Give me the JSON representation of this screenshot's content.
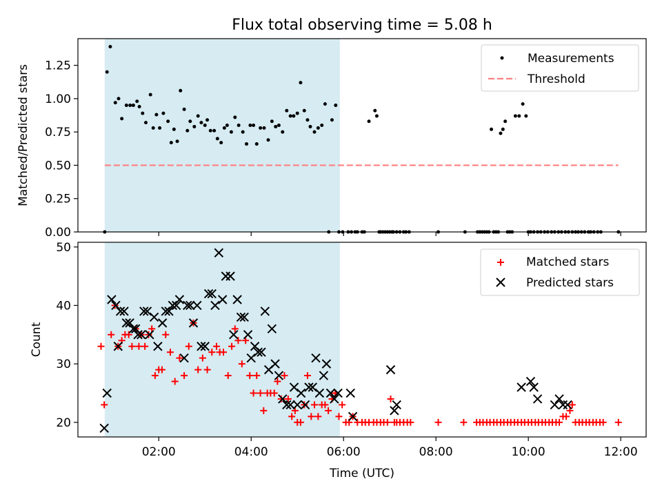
{
  "colors": {
    "measurement": "#000000",
    "threshold": "#ff7f7f",
    "matched": "#ff0000",
    "predicted": "#000000",
    "shade": "#add8e6"
  },
  "chart_data": {
    "title": "Flux total observing time = 5.08 h",
    "x_axis": {
      "label": "Time (UTC)",
      "xlim_hours": [
        0.25,
        12.55
      ],
      "ticks": [
        2,
        4,
        6,
        8,
        10,
        12
      ],
      "tick_labels": [
        "02:00",
        "04:00",
        "06:00",
        "08:00",
        "10:00",
        "12:00"
      ]
    },
    "shaded_interval_hours": [
      0.83,
      5.92
    ],
    "panels": [
      {
        "type": "scatter",
        "ylabel": "Matched/Predicted stars",
        "ylim": [
          0,
          1.45
        ],
        "yticks": [
          0.0,
          0.25,
          0.5,
          0.75,
          1.0,
          1.25
        ],
        "ytick_labels": [
          "0.00",
          "0.25",
          "0.50",
          "0.75",
          "1.00",
          "1.25"
        ],
        "legend": {
          "placement": "top-right",
          "entries": [
            "Measurements",
            "Threshold"
          ]
        },
        "threshold": {
          "name": "Threshold",
          "y": 0.5,
          "x_range": [
            0.83,
            11.95
          ]
        },
        "series": [
          {
            "name": "Measurements",
            "marker": "dot",
            "x": [
              0.83,
              0.88,
              0.95,
              1.06,
              1.13,
              1.2,
              1.3,
              1.38,
              1.45,
              1.53,
              1.58,
              1.65,
              1.72,
              1.82,
              1.88,
              1.95,
              2.02,
              2.1,
              2.2,
              2.27,
              2.33,
              2.4,
              2.47,
              2.55,
              2.62,
              2.68,
              2.77,
              2.85,
              2.92,
              3.0,
              3.05,
              3.12,
              3.2,
              3.27,
              3.35,
              3.42,
              3.48,
              3.57,
              3.65,
              3.73,
              3.82,
              3.9,
              3.98,
              4.05,
              4.12,
              4.2,
              4.28,
              4.37,
              4.45,
              4.53,
              4.6,
              4.68,
              4.77,
              4.85,
              4.92,
              5.0,
              5.07,
              5.15,
              5.22,
              5.28,
              5.37,
              5.45,
              5.53,
              5.6,
              5.68,
              5.75,
              5.83,
              5.9,
              5.98,
              6.1,
              6.17,
              6.25,
              6.3,
              6.4,
              6.45,
              6.55,
              6.68,
              6.72,
              6.77,
              6.8,
              6.85,
              6.9,
              6.95,
              7.0,
              7.05,
              7.08,
              7.15,
              7.22,
              7.3,
              7.35,
              7.42,
              8.05,
              8.63,
              8.9,
              8.95,
              9.0,
              9.05,
              9.1,
              9.15,
              9.2,
              9.25,
              9.3,
              9.35,
              9.4,
              9.45,
              9.5,
              9.55,
              9.6,
              9.65,
              9.72,
              9.8,
              9.88,
              9.95,
              10.0,
              10.05,
              10.12,
              10.2,
              10.27,
              10.35,
              10.42,
              10.5,
              10.57,
              10.65,
              10.72,
              10.8,
              10.87,
              10.95,
              11.02,
              11.08,
              11.15,
              11.22,
              11.3,
              11.35,
              11.42,
              11.5,
              11.57,
              11.95
            ],
            "y": [
              0.0,
              1.2,
              1.39,
              0.97,
              1.0,
              0.85,
              0.95,
              0.95,
              0.95,
              0.98,
              0.94,
              0.89,
              0.82,
              1.03,
              0.78,
              0.88,
              0.78,
              0.89,
              0.83,
              0.67,
              0.77,
              0.68,
              1.06,
              0.92,
              0.76,
              0.83,
              0.79,
              0.87,
              0.82,
              0.8,
              0.84,
              0.76,
              0.76,
              0.7,
              0.67,
              0.78,
              0.8,
              0.75,
              0.86,
              0.8,
              0.75,
              0.66,
              0.8,
              0.8,
              0.66,
              0.78,
              0.78,
              0.69,
              0.83,
              0.79,
              0.8,
              0.75,
              0.91,
              0.87,
              0.87,
              0.89,
              1.12,
              0.91,
              0.84,
              0.79,
              0.75,
              0.78,
              0.8,
              0.96,
              0.0,
              0.84,
              0.95,
              0.0,
              0.0,
              0.0,
              0.0,
              0.0,
              0.0,
              0.0,
              0.0,
              0.83,
              0.91,
              0.87,
              0.0,
              0.0,
              0.0,
              0.0,
              0.0,
              0.0,
              0.0,
              0.0,
              0.0,
              0.0,
              0.0,
              0.0,
              0.0,
              0.0,
              0.0,
              0.0,
              0.0,
              0.0,
              0.0,
              0.0,
              0.0,
              0.77,
              0.0,
              0.0,
              0.0,
              0.74,
              0.77,
              0.83,
              0.0,
              0.0,
              0.0,
              0.87,
              0.87,
              0.96,
              0.87,
              0.0,
              0.0,
              0.0,
              0.0,
              0.0,
              0.0,
              0.0,
              0.0,
              0.0,
              0.0,
              0.0,
              0.0,
              0.0,
              0.0,
              0.0,
              0.0,
              0.0,
              0.0,
              0.0,
              0.0,
              0.0,
              0.0,
              0.0,
              0.0
            ]
          }
        ]
      },
      {
        "type": "scatter",
        "ylabel": "Count",
        "ylim": [
          17.5,
          50.8
        ],
        "yticks": [
          20,
          30,
          40,
          50
        ],
        "ytick_labels": [
          "20",
          "30",
          "40",
          "50"
        ],
        "legend": {
          "placement": "top-right",
          "entries": [
            "Matched stars",
            "Predicted stars"
          ]
        },
        "series": [
          {
            "name": "Matched stars",
            "marker": "plus",
            "x": [
              0.75,
              0.82,
              0.97,
              1.05,
              1.12,
              1.2,
              1.27,
              1.35,
              1.42,
              1.5,
              1.57,
              1.62,
              1.7,
              1.78,
              1.85,
              1.92,
              2.0,
              2.07,
              2.15,
              2.25,
              2.35,
              2.45,
              2.55,
              2.65,
              2.75,
              2.85,
              2.95,
              3.05,
              3.15,
              3.25,
              3.32,
              3.4,
              3.5,
              3.58,
              3.65,
              3.72,
              3.8,
              3.88,
              3.97,
              4.05,
              4.12,
              4.2,
              4.27,
              4.35,
              4.42,
              4.5,
              4.57,
              4.65,
              4.72,
              4.8,
              4.88,
              4.95,
              5.0,
              5.07,
              5.15,
              5.22,
              5.3,
              5.37,
              5.45,
              5.53,
              5.6,
              5.67,
              5.75,
              5.82,
              5.9,
              5.97,
              6.05,
              6.12,
              6.2,
              6.3,
              6.4,
              6.47,
              6.55,
              6.65,
              6.72,
              6.8,
              6.87,
              6.95,
              7.02,
              7.1,
              7.15,
              7.22,
              7.3,
              7.38,
              7.45,
              8.05,
              8.6,
              8.88,
              8.95,
              9.02,
              9.1,
              9.17,
              9.25,
              9.32,
              9.4,
              9.47,
              9.55,
              9.62,
              9.7,
              9.77,
              9.85,
              9.92,
              10.0,
              10.07,
              10.15,
              10.22,
              10.3,
              10.37,
              10.45,
              10.52,
              10.6,
              10.67,
              10.75,
              10.82,
              10.9,
              10.95,
              11.02,
              11.1,
              11.17,
              11.25,
              11.32,
              11.4,
              11.47,
              11.55,
              11.62,
              11.95
            ],
            "y": [
              33,
              23,
              35,
              40,
              33,
              34,
              35,
              35,
              33,
              36,
              33,
              35,
              33,
              35,
              36,
              28,
              29,
              29,
              35,
              32,
              27,
              31,
              28,
              33,
              37,
              29,
              31,
              29,
              32,
              33,
              32,
              32,
              28,
              33,
              36,
              34,
              30,
              34,
              28,
              25,
              28,
              25,
              22,
              25,
              25,
              25,
              27,
              24,
              28,
              24,
              21,
              22,
              20,
              20,
              23,
              28,
              21,
              23,
              21,
              23,
              23,
              22,
              24,
              25,
              21,
              23,
              20,
              20,
              21,
              20,
              20,
              20,
              20,
              20,
              20,
              20,
              20,
              20,
              24,
              20,
              20,
              20,
              20,
              20,
              20,
              20,
              20,
              20,
              20,
              20,
              20,
              20,
              20,
              20,
              20,
              20,
              20,
              20,
              20,
              20,
              20,
              20,
              20,
              20,
              20,
              20,
              20,
              20,
              20,
              20,
              20,
              20,
              21,
              21,
              22,
              23,
              20,
              20,
              20,
              20,
              20,
              20,
              20,
              20,
              20,
              20
            ]
          },
          {
            "name": "Predicted stars",
            "marker": "x",
            "x": [
              0.82,
              0.88,
              0.98,
              1.07,
              1.12,
              1.17,
              1.25,
              1.3,
              1.37,
              1.45,
              1.5,
              1.55,
              1.62,
              1.68,
              1.75,
              1.8,
              1.9,
              1.98,
              2.08,
              2.15,
              2.22,
              2.3,
              2.38,
              2.45,
              2.55,
              2.62,
              2.68,
              2.75,
              2.83,
              2.92,
              3.0,
              3.08,
              3.15,
              3.22,
              3.3,
              3.38,
              3.45,
              3.55,
              3.62,
              3.7,
              3.78,
              3.85,
              3.93,
              4.0,
              4.08,
              4.15,
              4.22,
              4.3,
              4.38,
              4.45,
              4.52,
              4.6,
              4.68,
              4.77,
              4.85,
              4.93,
              5.0,
              5.08,
              5.17,
              5.25,
              5.33,
              5.4,
              5.48,
              5.57,
              5.63,
              5.72,
              5.8,
              5.88,
              6.15,
              6.2,
              7.02,
              7.1,
              7.15,
              9.85,
              10.05,
              10.12,
              10.2,
              10.57,
              10.67,
              10.75,
              10.85
            ],
            "y": [
              19,
              25,
              41,
              40,
              33,
              39,
              39,
              37,
              37,
              36,
              36,
              35,
              35,
              39,
              39,
              35,
              38,
              33,
              37,
              39,
              39,
              40,
              40,
              41,
              31,
              40,
              40,
              37,
              40,
              33,
              33,
              42,
              42,
              40,
              49,
              41,
              45,
              45,
              35,
              41,
              38,
              38,
              35,
              31,
              33,
              32,
              32,
              39,
              29,
              36,
              30,
              28,
              24,
              23,
              23,
              26,
              23,
              25,
              23,
              26,
              26,
              31,
              25,
              28,
              30,
              25,
              24,
              25,
              25,
              21,
              29,
              22,
              23,
              26,
              27,
              26,
              24,
              23,
              24,
              23,
              23
            ]
          }
        ]
      }
    ]
  }
}
